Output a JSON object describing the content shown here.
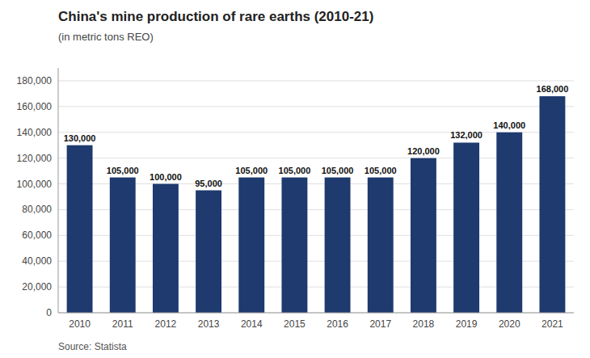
{
  "chart_data": {
    "type": "bar",
    "title": "China's mine production of rare earths (2010-21)",
    "subtitle": "(in metric tons REO)",
    "source": "Source: Statista",
    "categories": [
      "2010",
      "2011",
      "2012",
      "2013",
      "2014",
      "2015",
      "2016",
      "2017",
      "2018",
      "2019",
      "2020",
      "2021"
    ],
    "values": [
      130000,
      105000,
      100000,
      95000,
      105000,
      105000,
      105000,
      105000,
      120000,
      132000,
      140000,
      168000
    ],
    "value_labels": [
      "130,000",
      "105,000",
      "100,000",
      "95,000",
      "105,000",
      "105,000",
      "105,000",
      "105,000",
      "120,000",
      "132,000",
      "140,000",
      "168,000"
    ],
    "data_labels": true,
    "color": "#1e3a6e",
    "ylim": [
      0,
      190000
    ],
    "yticks": [
      0,
      {
        "value": 20000,
        "label": "20,000"
      },
      {
        "value": 40000,
        "label": "40,000"
      },
      {
        "value": 60000,
        "label": "60,000"
      },
      {
        "value": 80000,
        "label": "80,000"
      },
      {
        "value": 100000,
        "label": "100,000"
      },
      {
        "value": 120000,
        "label": "120,000"
      },
      {
        "value": 140000,
        "label": "140,000"
      },
      {
        "value": 160000,
        "label": "160,000"
      },
      {
        "value": 180000,
        "label": "180,000"
      }
    ],
    "grid": true
  }
}
